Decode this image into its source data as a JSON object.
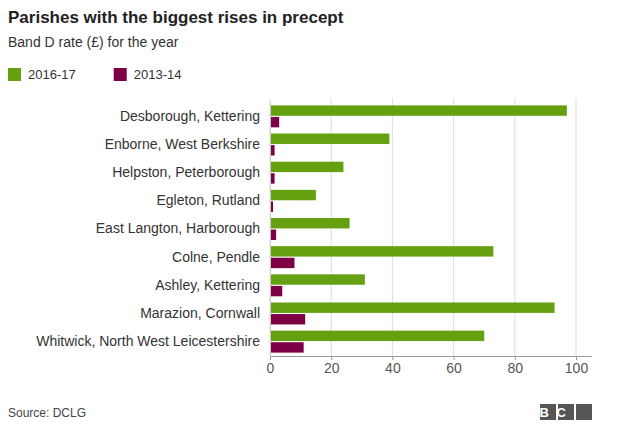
{
  "chart_data": {
    "type": "bar",
    "orientation": "horizontal",
    "title": "Parishes with the biggest rises in precept",
    "subtitle": "Band D rate (£) for the year",
    "categories": [
      "Desborough, Kettering",
      "Enborne, West Berkshire",
      "Helpston, Peterborough",
      "Egleton, Rutland",
      "East Langton, Harborough",
      "Colne, Pendle",
      "Ashley, Kettering",
      "Marazion, Cornwall",
      "Whitwick, North West Leicestershire"
    ],
    "series": [
      {
        "name": "2016-17",
        "color": "#64a00f",
        "values": [
          97,
          39,
          24,
          15,
          26,
          73,
          31,
          93,
          70
        ]
      },
      {
        "name": "2013-14",
        "color": "#7d0046",
        "values": [
          3,
          1.5,
          1.5,
          1,
          2,
          8,
          4,
          11.5,
          11
        ]
      }
    ],
    "xlim": [
      0,
      105
    ],
    "xticks": [
      0,
      20,
      40,
      60,
      80,
      100
    ],
    "grid": true,
    "legend": "top left",
    "annotations": [
      "Source: DCLG",
      "BBC"
    ]
  }
}
